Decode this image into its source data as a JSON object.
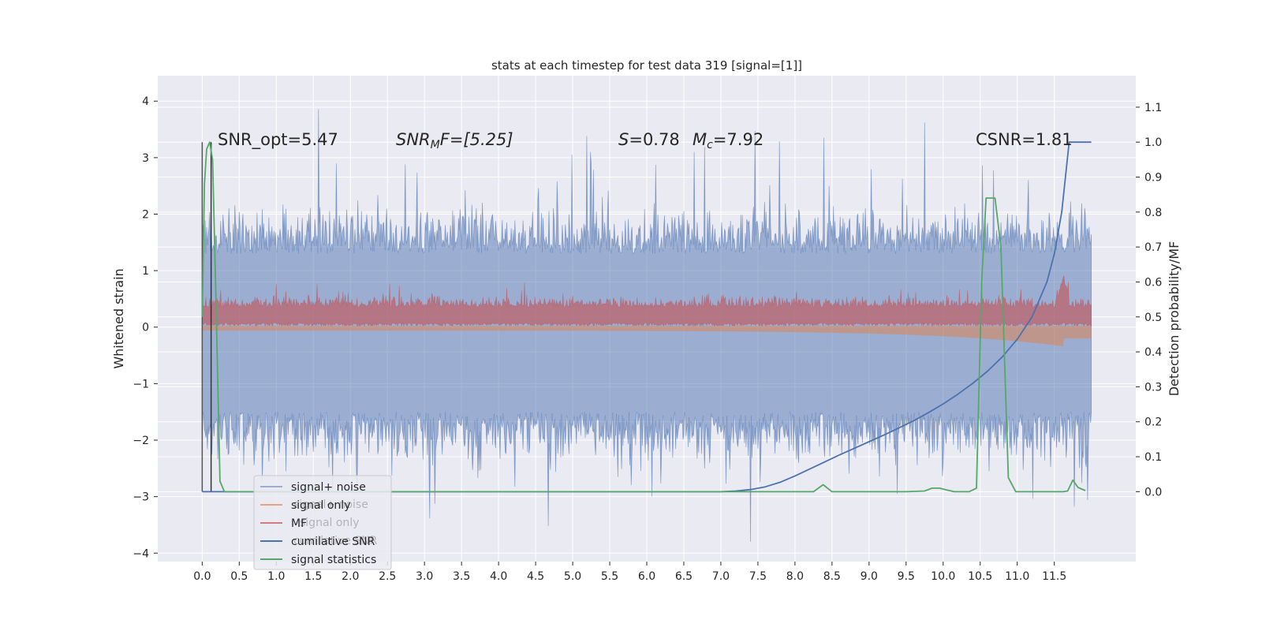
{
  "chart_data": {
    "type": "line",
    "title": "stats at each timestep for test data 319 [signal=[1]]",
    "xlabel": "",
    "ylabel": "Whitened strain",
    "ylabel_right": "Detection probability/MF",
    "xlim": [
      -0.6,
      12.6
    ],
    "ylim": [
      -4.15,
      4.45
    ],
    "ylim_right": [
      -0.2,
      1.19
    ],
    "x_ticks": [
      "0.0",
      "0.5",
      "1.0",
      "1.5",
      "2.0",
      "2.5",
      "3.0",
      "3.5",
      "4.0",
      "4.5",
      "5.0",
      "5.5",
      "6.0",
      "6.5",
      "7.0",
      "7.5",
      "8.0",
      "8.5",
      "9.0",
      "9.5",
      "10.0",
      "10.5",
      "11.0",
      "11.5"
    ],
    "y_ticks": [
      "4",
      "3",
      "2",
      "1",
      "0",
      "−1",
      "−2",
      "−3",
      "−4"
    ],
    "y_ticks_right": [
      "1.1",
      "1.0",
      "0.9",
      "0.8",
      "0.7",
      "0.6",
      "0.5",
      "0.4",
      "0.3",
      "0.2",
      "0.1",
      "0.0"
    ],
    "grid": true,
    "legend_position": "lower-left",
    "annotations": {
      "snr_opt": "SNR_opt=5.47",
      "snr_mf_main": "SNR",
      "snr_mf_sub": "M",
      "snr_mf_rest": "F=[5.25]",
      "s_var": "S",
      "s_val": "=0.78",
      "mc_var": "M",
      "mc_sub": "c",
      "mc_val": "=7.92",
      "csnr": "CSNR=1.81"
    },
    "series": [
      {
        "name": "signal+ noise",
        "color": "#4c72b0",
        "style": "noise-fill",
        "note_range": [
          -2.3,
          2.7
        ]
      },
      {
        "name": "signal only",
        "color": "#dd8452",
        "style": "chirp-fill"
      },
      {
        "name": "MF",
        "color": "#c44e52",
        "style": "mf-fill"
      },
      {
        "name": "cumilative SNR",
        "color": "#4c72b0",
        "x": [
          0.0,
          1.0,
          2.0,
          3.0,
          4.0,
          5.0,
          6.0,
          7.0,
          7.2,
          7.4,
          7.6,
          7.8,
          8.0,
          8.2,
          8.4,
          8.6,
          8.8,
          9.0,
          9.2,
          9.4,
          9.6,
          9.8,
          10.0,
          10.2,
          10.4,
          10.6,
          10.8,
          11.0,
          11.2,
          11.4,
          11.5,
          11.6,
          11.65,
          11.7,
          12.0
        ],
        "y": [
          0.0,
          0.0,
          0.0,
          0.0,
          0.0,
          0.0,
          0.0,
          0.0,
          0.002,
          0.006,
          0.014,
          0.027,
          0.045,
          0.065,
          0.085,
          0.105,
          0.124,
          0.143,
          0.162,
          0.182,
          0.203,
          0.226,
          0.251,
          0.279,
          0.31,
          0.345,
          0.386,
          0.436,
          0.5,
          0.6,
          0.68,
          0.8,
          0.9,
          1.0,
          1.0
        ]
      },
      {
        "name": "signal statistics",
        "color": "#55a868",
        "x": [
          0.0,
          0.03,
          0.06,
          0.1,
          0.14,
          0.18,
          0.24,
          0.3,
          0.38,
          0.5,
          2.0,
          4.0,
          6.0,
          8.0,
          8.25,
          8.38,
          8.5,
          8.7,
          9.0,
          9.5,
          9.75,
          9.85,
          9.95,
          10.05,
          10.15,
          10.35,
          10.45,
          10.52,
          10.58,
          10.65,
          10.7,
          10.78,
          10.88,
          10.98,
          11.12,
          11.25,
          11.5,
          11.62,
          11.68,
          11.75,
          11.82,
          11.92
        ],
        "y": [
          0.5,
          0.88,
          0.98,
          1.0,
          0.95,
          0.6,
          0.03,
          0.0,
          0.0,
          0.0,
          0.0,
          0.0,
          0.0,
          0.0,
          0.0,
          0.02,
          0.0,
          0.0,
          0.0,
          0.0,
          0.002,
          0.01,
          0.01,
          0.005,
          0.0,
          0.0,
          0.01,
          0.6,
          0.84,
          0.84,
          0.84,
          0.7,
          0.04,
          0.0,
          0.0,
          0.0,
          0.0,
          0.0,
          0.002,
          0.033,
          0.012,
          0.003
        ]
      }
    ]
  }
}
